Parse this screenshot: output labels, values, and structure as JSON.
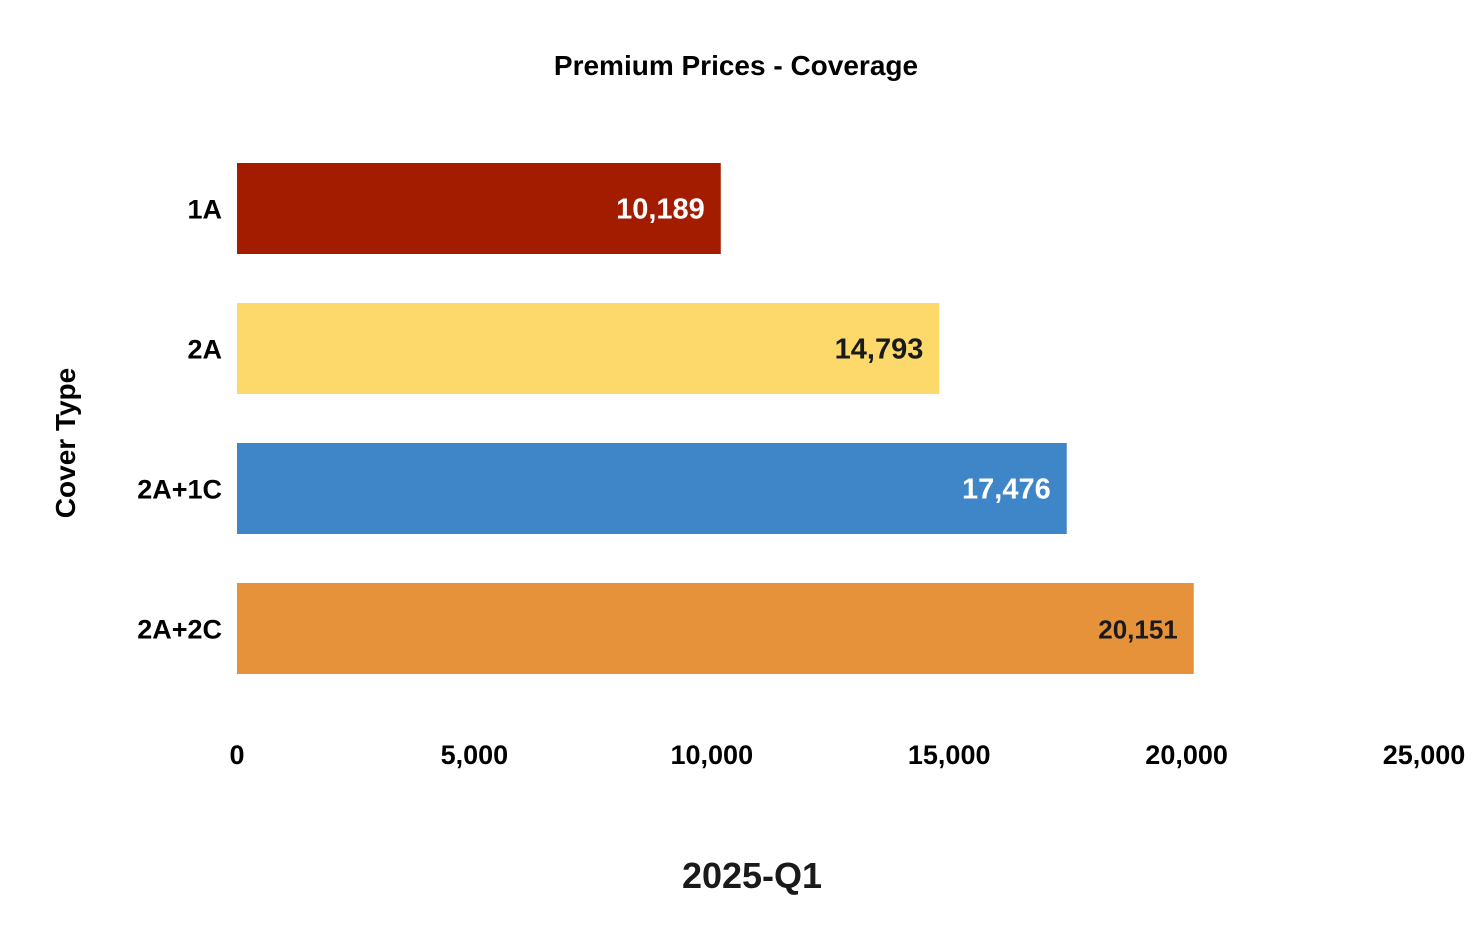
{
  "chart_data": {
    "type": "bar",
    "orientation": "horizontal",
    "title": "Premium Prices - Coverage",
    "xlabel": "2025-Q1",
    "ylabel": "Cover Type",
    "categories": [
      "1A",
      "2A",
      "2A+1C",
      "2A+2C"
    ],
    "values": [
      10189,
      14793,
      17476,
      20151
    ],
    "value_labels": [
      "10,189",
      "14,793",
      "17,476",
      "20,151"
    ],
    "bar_colors": [
      "#a31c00",
      "#fcd96a",
      "#3f86c8",
      "#e6923a"
    ],
    "value_label_colors": [
      "#ffffff",
      "#1a1a1a",
      "#ffffff",
      "#1a1a1a"
    ],
    "xlim": [
      0,
      25000
    ],
    "x_ticks": [
      0,
      5000,
      10000,
      15000,
      20000,
      25000
    ],
    "x_tick_labels": [
      "0",
      "5,000",
      "10,000",
      "15,000",
      "20,000",
      "25,000"
    ],
    "grid": false,
    "legend": "none"
  }
}
